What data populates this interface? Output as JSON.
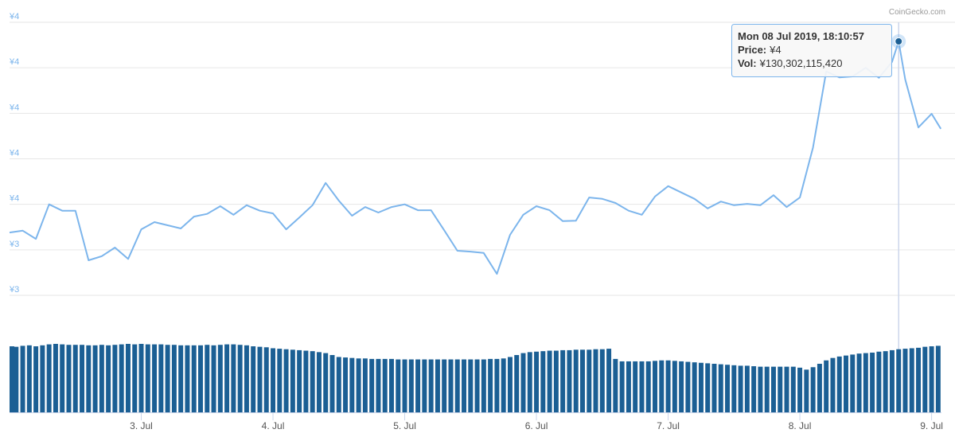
{
  "chart_data": [
    {
      "type": "line",
      "credit": "CoinGecko.com",
      "color": "#7cb5ec",
      "x": [
        2,
        2.1,
        2.2,
        2.3,
        2.4,
        2.5,
        2.6,
        2.7,
        2.8,
        2.9,
        3,
        3.1,
        3.2,
        3.3,
        3.4,
        3.5,
        3.6,
        3.7,
        3.8,
        3.9,
        4,
        4.1,
        4.2,
        4.3,
        4.4,
        4.5,
        4.6,
        4.7,
        4.8,
        4.9,
        5,
        5.1,
        5.2,
        5.3,
        5.4,
        5.5,
        5.6,
        5.7,
        5.8,
        5.9,
        6,
        6.1,
        6.2,
        6.3,
        6.4,
        6.5,
        6.6,
        6.7,
        6.8,
        6.9,
        7,
        7.1,
        7.2,
        7.3,
        7.4,
        7.5,
        7.6,
        7.7,
        7.8,
        7.9,
        8,
        8.1,
        8.2,
        8.3,
        8.4,
        8.5,
        8.6,
        8.7,
        8.75,
        8.8,
        8.9,
        9,
        9.07
      ],
      "values": [
        3.488,
        3.492,
        3.474,
        3.55,
        3.536,
        3.536,
        3.427,
        3.436,
        3.455,
        3.43,
        3.495,
        3.511,
        3.504,
        3.497,
        3.523,
        3.529,
        3.546,
        3.527,
        3.548,
        3.536,
        3.53,
        3.495,
        3.521,
        3.548,
        3.597,
        3.558,
        3.525,
        3.544,
        3.532,
        3.544,
        3.55,
        3.537,
        3.537,
        3.493,
        3.448,
        3.446,
        3.443,
        3.397,
        3.483,
        3.527,
        3.546,
        3.537,
        3.513,
        3.514,
        3.565,
        3.562,
        3.553,
        3.536,
        3.527,
        3.567,
        3.59,
        3.576,
        3.562,
        3.541,
        3.556,
        3.548,
        3.551,
        3.548,
        3.57,
        3.544,
        3.565,
        3.675,
        3.842,
        3.829,
        3.831,
        3.85,
        3.828,
        3.863,
        3.908,
        3.824,
        3.719,
        3.749,
        3.716
      ],
      "xlim": [
        2,
        9.075
      ],
      "ylim": [
        3.35,
        3.95
      ],
      "grid": true,
      "yticks": [
        {
          "value": 3.35,
          "label": "¥3"
        },
        {
          "value": 3.45,
          "label": "¥3"
        },
        {
          "value": 3.55,
          "label": "¥4"
        },
        {
          "value": 3.65,
          "label": "¥4"
        },
        {
          "value": 3.75,
          "label": "¥4"
        },
        {
          "value": 3.85,
          "label": "¥4"
        },
        {
          "value": 3.95,
          "label": "¥4"
        }
      ],
      "tooltip": {
        "date": "Mon 08 Jul 2019, 18:10:57",
        "price_label": "Price:",
        "price": "¥4",
        "vol_label": "Vol:",
        "vol": "¥130,302,115,420"
      }
    },
    {
      "type": "bar",
      "color": "#1b5f94",
      "x": [
        2,
        2.05,
        2.1,
        2.15,
        2.2,
        2.25,
        2.3,
        2.35,
        2.4,
        2.45,
        2.5,
        2.55,
        2.6,
        2.65,
        2.7,
        2.75,
        2.8,
        2.85,
        2.9,
        2.95,
        3,
        3.05,
        3.1,
        3.15,
        3.2,
        3.25,
        3.3,
        3.35,
        3.4,
        3.45,
        3.5,
        3.55,
        3.6,
        3.65,
        3.7,
        3.75,
        3.8,
        3.85,
        3.9,
        3.95,
        4,
        4.05,
        4.1,
        4.15,
        4.2,
        4.25,
        4.3,
        4.35,
        4.4,
        4.45,
        4.5,
        4.55,
        4.6,
        4.65,
        4.7,
        4.75,
        4.8,
        4.85,
        4.9,
        4.95,
        5,
        5.05,
        5.1,
        5.15,
        5.2,
        5.25,
        5.3,
        5.35,
        5.4,
        5.45,
        5.5,
        5.55,
        5.6,
        5.65,
        5.7,
        5.75,
        5.8,
        5.85,
        5.9,
        5.95,
        6,
        6.05,
        6.1,
        6.15,
        6.2,
        6.25,
        6.3,
        6.35,
        6.4,
        6.45,
        6.5,
        6.55,
        6.6,
        6.65,
        6.7,
        6.75,
        6.8,
        6.85,
        6.9,
        6.95,
        7,
        7.05,
        7.1,
        7.15,
        7.2,
        7.25,
        7.3,
        7.35,
        7.4,
        7.45,
        7.5,
        7.55,
        7.6,
        7.65,
        7.7,
        7.75,
        7.8,
        7.85,
        7.9,
        7.95,
        8,
        8.05,
        8.1,
        8.15,
        8.2,
        8.25,
        8.3,
        8.35,
        8.4,
        8.45,
        8.5,
        8.55,
        8.6,
        8.65,
        8.7,
        8.75,
        8.8,
        8.85,
        8.9,
        8.95,
        9,
        9.05
      ],
      "values": [
        136000000000.0,
        135000000000.0,
        137000000000.0,
        138000000000.0,
        136000000000.0,
        138000000000.0,
        140000000000.0,
        141000000000.0,
        140000000000.0,
        139000000000.0,
        139000000000.0,
        139000000000.0,
        138000000000.0,
        138000000000.0,
        139000000000.0,
        138000000000.0,
        139000000000.0,
        140000000000.0,
        141000000000.0,
        140000000000.0,
        141000000000.0,
        140000000000.0,
        140000000000.0,
        140000000000.0,
        139000000000.0,
        139000000000.0,
        138000000000.0,
        138000000000.0,
        138000000000.0,
        138000000000.0,
        139000000000.0,
        138000000000.0,
        139000000000.0,
        140000000000.0,
        140000000000.0,
        139000000000.0,
        138000000000.0,
        136000000000.0,
        135000000000.0,
        134000000000.0,
        132000000000.0,
        131000000000.0,
        130000000000.0,
        129000000000.0,
        128000000000.0,
        127000000000.0,
        126000000000.0,
        124000000000.0,
        122000000000.0,
        118000000000.0,
        114000000000.0,
        113000000000.0,
        112000000000.0,
        111000000000.0,
        111000000000.0,
        110000000000.0,
        110000000000.0,
        110000000000.0,
        110000000000.0,
        109000000000.0,
        109000000000.0,
        109000000000.0,
        109000000000.0,
        109000000000.0,
        109000000000.0,
        109000000000.0,
        109000000000.0,
        109000000000.0,
        109000000000.0,
        109000000000.0,
        109000000000.0,
        109000000000.0,
        109000000000.0,
        110000000000.0,
        110000000000.0,
        111000000000.0,
        114000000000.0,
        118000000000.0,
        122000000000.0,
        124000000000.0,
        125000000000.0,
        126000000000.0,
        127000000000.0,
        127000000000.0,
        128000000000.0,
        128000000000.0,
        129000000000.0,
        129000000000.0,
        129000000000.0,
        130000000000.0,
        130000000000.0,
        131000000000.0,
        110000000000.0,
        105000000000.0,
        105000000000.0,
        105000000000.0,
        105000000000.0,
        105000000000.0,
        106000000000.0,
        107000000000.0,
        107000000000.0,
        106000000000.0,
        105000000000.0,
        104000000000.0,
        103000000000.0,
        102000000000.0,
        101000000000.0,
        100000000000.0,
        99000000000.0,
        98000000000.0,
        97000000000.0,
        96000000000.0,
        96000000000.0,
        95000000000.0,
        94000000000.0,
        94000000000.0,
        94000000000.0,
        94000000000.0,
        94000000000.0,
        94000000000.0,
        92000000000.0,
        88000000000.0,
        93000000000.0,
        100000000000.0,
        107000000000.0,
        112000000000.0,
        115000000000.0,
        117000000000.0,
        119000000000.0,
        121000000000.0,
        122000000000.0,
        123000000000.0,
        125000000000.0,
        126000000000.0,
        128000000000.0,
        130000000000.0,
        131000000000.0,
        132000000000.0,
        133000000000.0,
        135000000000.0,
        136000000000.0,
        137000000000.0
      ],
      "xlim": [
        2,
        9.075
      ],
      "ylim": [
        0,
        200000000000.0
      ],
      "xticks": [
        {
          "value": 3,
          "label": "3. Jul"
        },
        {
          "value": 4,
          "label": "4. Jul"
        },
        {
          "value": 5,
          "label": "5. Jul"
        },
        {
          "value": 6,
          "label": "6. Jul"
        },
        {
          "value": 7,
          "label": "7. Jul"
        },
        {
          "value": 8,
          "label": "8. Jul"
        },
        {
          "value": 9,
          "label": "9. Jul"
        }
      ]
    }
  ]
}
